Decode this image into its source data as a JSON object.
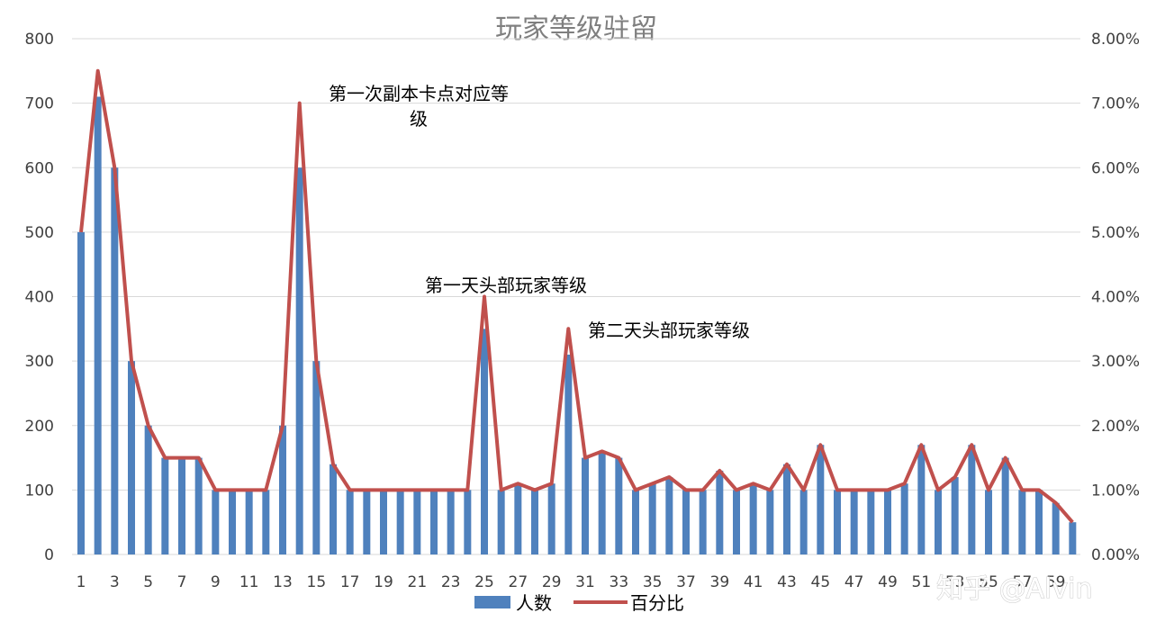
{
  "chart_data": {
    "type": "bar",
    "title": "玩家等级驻留",
    "x": [
      1,
      2,
      3,
      4,
      5,
      6,
      7,
      8,
      9,
      10,
      11,
      12,
      13,
      14,
      15,
      16,
      17,
      18,
      19,
      20,
      21,
      22,
      23,
      24,
      25,
      26,
      27,
      28,
      29,
      30,
      31,
      32,
      33,
      34,
      35,
      36,
      37,
      38,
      39,
      40,
      41,
      42,
      43,
      44,
      45,
      46,
      47,
      48,
      49,
      50,
      51,
      52,
      53,
      54,
      55,
      56,
      57,
      58,
      59,
      60
    ],
    "x_tick_labels": [
      "1",
      "3",
      "5",
      "7",
      "9",
      "11",
      "13",
      "15",
      "17",
      "19",
      "21",
      "23",
      "25",
      "27",
      "29",
      "31",
      "33",
      "35",
      "37",
      "39",
      "41",
      "43",
      "45",
      "47",
      "49",
      "51",
      "53",
      "55",
      "57",
      "59"
    ],
    "series": [
      {
        "name": "人数",
        "type": "bar",
        "axis": "left",
        "color": "#4f81bd",
        "values": [
          500,
          710,
          600,
          300,
          200,
          150,
          150,
          150,
          100,
          100,
          100,
          100,
          200,
          600,
          300,
          140,
          100,
          100,
          100,
          100,
          100,
          100,
          100,
          100,
          350,
          100,
          110,
          100,
          110,
          310,
          150,
          160,
          150,
          100,
          110,
          120,
          100,
          100,
          130,
          100,
          110,
          100,
          140,
          100,
          170,
          100,
          100,
          100,
          100,
          110,
          170,
          100,
          120,
          170,
          100,
          150,
          100,
          100,
          80,
          50
        ]
      },
      {
        "name": "百分比",
        "type": "line",
        "axis": "right",
        "color": "#c0504d",
        "values": [
          0.05,
          0.075,
          0.06,
          0.03,
          0.02,
          0.015,
          0.015,
          0.015,
          0.01,
          0.01,
          0.01,
          0.01,
          0.02,
          0.07,
          0.03,
          0.014,
          0.01,
          0.01,
          0.01,
          0.01,
          0.01,
          0.01,
          0.01,
          0.01,
          0.04,
          0.01,
          0.011,
          0.01,
          0.011,
          0.035,
          0.015,
          0.016,
          0.015,
          0.01,
          0.011,
          0.012,
          0.01,
          0.01,
          0.013,
          0.01,
          0.011,
          0.01,
          0.014,
          0.01,
          0.017,
          0.01,
          0.01,
          0.01,
          0.01,
          0.011,
          0.017,
          0.01,
          0.012,
          0.017,
          0.01,
          0.015,
          0.01,
          0.01,
          0.008,
          0.005
        ]
      }
    ],
    "y_left": {
      "ylim": [
        0,
        800
      ],
      "ticks": [
        "0",
        "100",
        "200",
        "300",
        "400",
        "500",
        "600",
        "700",
        "800"
      ]
    },
    "y_right": {
      "ylim": [
        0,
        0.08
      ],
      "ticks": [
        "0.00%",
        "1.00%",
        "2.00%",
        "3.00%",
        "4.00%",
        "5.00%",
        "6.00%",
        "7.00%",
        "8.00%"
      ]
    },
    "grid": true,
    "legend": {
      "position": "bottom",
      "items": [
        "人数",
        "百分比"
      ]
    },
    "annotations": [
      {
        "text_lines": [
          "第一次副本卡点对应等",
          "级"
        ],
        "x": 14,
        "anchor": "above"
      },
      {
        "text_lines": [
          "第一天头部玩家等级"
        ],
        "x": 25,
        "anchor": "above"
      },
      {
        "text_lines": [
          "第二天头部玩家等级"
        ],
        "x": 30,
        "anchor": "right"
      }
    ]
  },
  "watermark": "知乎 @Alvin"
}
